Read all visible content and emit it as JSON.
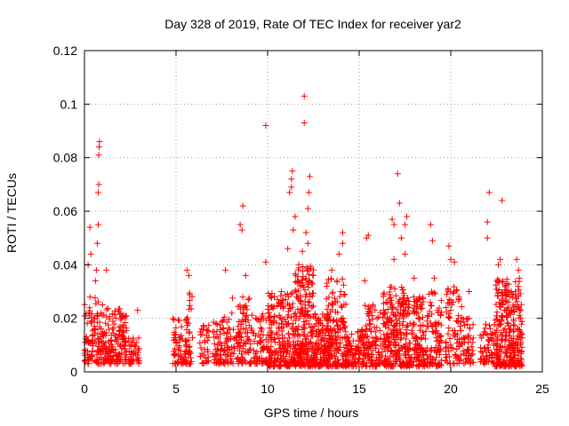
{
  "chart_data": {
    "type": "scatter",
    "title": "Day 328 of 2019, Rate Of TEC Index for receiver yar2",
    "xlabel": "GPS time / hours",
    "ylabel": "ROTI / TECUs",
    "xlim": [
      0,
      25
    ],
    "ylim": [
      0,
      0.12
    ],
    "xticks": [
      0,
      5,
      10,
      15,
      20,
      25
    ],
    "yticks": [
      0,
      0.02,
      0.04,
      0.06,
      0.08,
      0.1,
      0.12
    ],
    "xtick_labels": [
      "0",
      "5",
      "10",
      "15",
      "20",
      "25"
    ],
    "ytick_labels": [
      "0",
      "0.02",
      "0.04",
      "0.06",
      "0.08",
      "0.1",
      "0.12"
    ],
    "grid": true,
    "marker": "+",
    "color": "#ff0000",
    "clusters": [
      {
        "x": [
          0.0,
          1.3
        ],
        "ymin": 0.003,
        "ymax": 0.028,
        "n": 140
      },
      {
        "x": [
          1.3,
          2.3
        ],
        "ymin": 0.003,
        "ymax": 0.024,
        "n": 120
      },
      {
        "x": [
          2.4,
          3.0
        ],
        "ymin": 0.003,
        "ymax": 0.013,
        "n": 45
      },
      {
        "x": [
          4.8,
          5.6
        ],
        "ymin": 0.003,
        "ymax": 0.02,
        "n": 60
      },
      {
        "x": [
          5.5,
          5.9
        ],
        "ymin": 0.003,
        "ymax": 0.03,
        "n": 40
      },
      {
        "x": [
          6.3,
          6.8
        ],
        "ymin": 0.003,
        "ymax": 0.018,
        "n": 35
      },
      {
        "x": [
          7.0,
          8.0
        ],
        "ymin": 0.003,
        "ymax": 0.022,
        "n": 90
      },
      {
        "x": [
          8.0,
          9.0
        ],
        "ymin": 0.003,
        "ymax": 0.028,
        "n": 90
      },
      {
        "x": [
          9.0,
          10.0
        ],
        "ymin": 0.003,
        "ymax": 0.022,
        "n": 70
      },
      {
        "x": [
          10.0,
          11.5
        ],
        "ymin": 0.002,
        "ymax": 0.03,
        "n": 230
      },
      {
        "x": [
          11.5,
          12.5
        ],
        "ymin": 0.002,
        "ymax": 0.04,
        "n": 230
      },
      {
        "x": [
          12.5,
          13.5
        ],
        "ymin": 0.002,
        "ymax": 0.022,
        "n": 150
      },
      {
        "x": [
          13.2,
          14.3
        ],
        "ymin": 0.002,
        "ymax": 0.035,
        "n": 150
      },
      {
        "x": [
          14.3,
          15.3
        ],
        "ymin": 0.002,
        "ymax": 0.016,
        "n": 110
      },
      {
        "x": [
          15.3,
          16.3
        ],
        "ymin": 0.002,
        "ymax": 0.025,
        "n": 110
      },
      {
        "x": [
          16.3,
          17.5
        ],
        "ymin": 0.002,
        "ymax": 0.032,
        "n": 210
      },
      {
        "x": [
          17.5,
          18.5
        ],
        "ymin": 0.002,
        "ymax": 0.028,
        "n": 150
      },
      {
        "x": [
          18.5,
          19.5
        ],
        "ymin": 0.002,
        "ymax": 0.03,
        "n": 110
      },
      {
        "x": [
          19.7,
          20.6
        ],
        "ymin": 0.003,
        "ymax": 0.032,
        "n": 90
      },
      {
        "x": [
          20.6,
          21.3
        ],
        "ymin": 0.003,
        "ymax": 0.02,
        "n": 50
      },
      {
        "x": [
          21.6,
          22.4
        ],
        "ymin": 0.003,
        "ymax": 0.018,
        "n": 60
      },
      {
        "x": [
          22.4,
          23.3
        ],
        "ymin": 0.002,
        "ymax": 0.035,
        "n": 180
      },
      {
        "x": [
          23.3,
          23.9
        ],
        "ymin": 0.002,
        "ymax": 0.035,
        "n": 110
      }
    ],
    "outliers": [
      {
        "x": 0.2,
        "y": 0.04
      },
      {
        "x": 0.3,
        "y": 0.054
      },
      {
        "x": 0.35,
        "y": 0.044
      },
      {
        "x": 0.6,
        "y": 0.034
      },
      {
        "x": 0.65,
        "y": 0.038
      },
      {
        "x": 0.7,
        "y": 0.048
      },
      {
        "x": 0.75,
        "y": 0.055
      },
      {
        "x": 0.75,
        "y": 0.067
      },
      {
        "x": 0.78,
        "y": 0.07
      },
      {
        "x": 0.78,
        "y": 0.081
      },
      {
        "x": 0.8,
        "y": 0.084
      },
      {
        "x": 0.82,
        "y": 0.086
      },
      {
        "x": 1.2,
        "y": 0.038
      },
      {
        "x": 2.9,
        "y": 0.023
      },
      {
        "x": 5.6,
        "y": 0.038
      },
      {
        "x": 5.7,
        "y": 0.036
      },
      {
        "x": 7.7,
        "y": 0.038
      },
      {
        "x": 8.5,
        "y": 0.055
      },
      {
        "x": 8.6,
        "y": 0.053
      },
      {
        "x": 8.65,
        "y": 0.062
      },
      {
        "x": 8.8,
        "y": 0.036
      },
      {
        "x": 9.9,
        "y": 0.092
      },
      {
        "x": 9.9,
        "y": 0.041
      },
      {
        "x": 11.1,
        "y": 0.046
      },
      {
        "x": 11.2,
        "y": 0.067
      },
      {
        "x": 11.3,
        "y": 0.069
      },
      {
        "x": 11.3,
        "y": 0.072
      },
      {
        "x": 11.35,
        "y": 0.075
      },
      {
        "x": 11.4,
        "y": 0.053
      },
      {
        "x": 11.5,
        "y": 0.058
      },
      {
        "x": 11.7,
        "y": 0.04
      },
      {
        "x": 11.9,
        "y": 0.045
      },
      {
        "x": 12.0,
        "y": 0.103
      },
      {
        "x": 12.0,
        "y": 0.093
      },
      {
        "x": 12.1,
        "y": 0.052
      },
      {
        "x": 12.2,
        "y": 0.061
      },
      {
        "x": 12.25,
        "y": 0.067
      },
      {
        "x": 12.3,
        "y": 0.073
      },
      {
        "x": 12.2,
        "y": 0.048
      },
      {
        "x": 13.5,
        "y": 0.038
      },
      {
        "x": 13.9,
        "y": 0.044
      },
      {
        "x": 14.1,
        "y": 0.052
      },
      {
        "x": 14.1,
        "y": 0.048
      },
      {
        "x": 15.4,
        "y": 0.05
      },
      {
        "x": 15.5,
        "y": 0.051
      },
      {
        "x": 15.3,
        "y": 0.034
      },
      {
        "x": 16.8,
        "y": 0.057
      },
      {
        "x": 16.9,
        "y": 0.055
      },
      {
        "x": 17.1,
        "y": 0.074
      },
      {
        "x": 17.2,
        "y": 0.063
      },
      {
        "x": 17.3,
        "y": 0.05
      },
      {
        "x": 16.9,
        "y": 0.042
      },
      {
        "x": 17.5,
        "y": 0.055
      },
      {
        "x": 17.6,
        "y": 0.058
      },
      {
        "x": 17.5,
        "y": 0.044
      },
      {
        "x": 18.0,
        "y": 0.035
      },
      {
        "x": 18.9,
        "y": 0.055
      },
      {
        "x": 19.0,
        "y": 0.049
      },
      {
        "x": 19.1,
        "y": 0.035
      },
      {
        "x": 19.9,
        "y": 0.047
      },
      {
        "x": 20.0,
        "y": 0.042
      },
      {
        "x": 20.2,
        "y": 0.041
      },
      {
        "x": 21.0,
        "y": 0.03
      },
      {
        "x": 22.1,
        "y": 0.067
      },
      {
        "x": 22.0,
        "y": 0.056
      },
      {
        "x": 22.0,
        "y": 0.05
      },
      {
        "x": 22.6,
        "y": 0.04
      },
      {
        "x": 22.7,
        "y": 0.042
      },
      {
        "x": 22.8,
        "y": 0.064
      },
      {
        "x": 23.6,
        "y": 0.042
      },
      {
        "x": 23.7,
        "y": 0.038
      }
    ]
  }
}
